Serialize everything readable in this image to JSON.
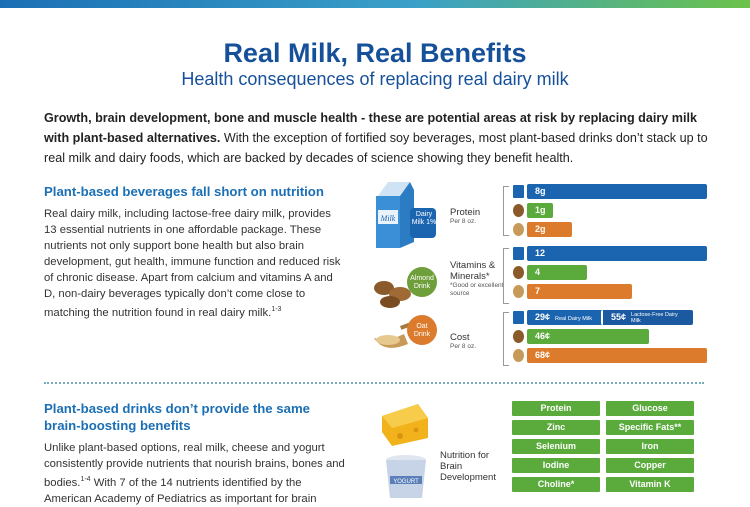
{
  "page": {
    "title": "Real Milk, Real Benefits",
    "subtitle": "Health consequences of replacing real dairy milk",
    "intro_bold": "Growth, brain development, bone and muscle health - these are potential areas at risk by replacing dairy milk with plant-based alternatives.",
    "intro_rest": " With the exception of fortified soy beverages, most plant-based drinks don’t stack up to real milk and dairy foods, which are backed by decades of science showing they benefit health."
  },
  "section1": {
    "heading": "Plant-based beverages fall short on nutrition",
    "body": "Real dairy milk, including lactose-free dairy milk, provides 13 essential nutrients in one affordable package. These nutrients not only support bone health but also brain development, gut health, immune function and reduced risk of chronic disease. Apart from calcium and vitamins A and D, non-dairy beverages typically don’t come close to matching the nutrition found in real dairy milk.",
    "body_sup": "1-3"
  },
  "products": {
    "dairy": "Dairy Milk 1%",
    "almond": "Almond Drink",
    "oat": "Oat Drink",
    "carton_text": "Milk"
  },
  "metrics": {
    "protein": {
      "label": "Protein",
      "note": "Per 8 oz."
    },
    "vitamins": {
      "label": "Vitamins & Minerals*",
      "note": "*Good or excellent source"
    },
    "cost": {
      "label": "Cost",
      "note": "Per 8 oz."
    }
  },
  "chart_data": {
    "type": "bar",
    "categories": [
      "Protein",
      "Vitamins & Minerals",
      "Cost"
    ],
    "series": [
      {
        "name": "Dairy Milk 1%",
        "values": [
          8,
          12,
          29
        ],
        "display": [
          "8g",
          "12",
          "29¢"
        ]
      },
      {
        "name": "Almond Drink",
        "values": [
          1,
          4,
          46
        ],
        "display": [
          "1g",
          "4",
          "46¢"
        ]
      },
      {
        "name": "Oat Drink",
        "values": [
          2,
          7,
          68
        ],
        "display": [
          "2g",
          "7",
          "68¢"
        ]
      }
    ],
    "extra": {
      "lactose_free_cost": "55¢",
      "real_label": "Real Dairy Milk",
      "lf_label": "Lactose-Free Dairy Milk"
    }
  },
  "section2": {
    "heading": "Plant-based drinks don’t provide the same brain-boosting benefits",
    "body": "Unlike plant-based options, real milk, cheese and yogurt consistently provide nutrients that nourish brains, bones and bodies.",
    "body_sup": "1-4",
    "body_cont": " With 7 of the 14 nutrients identified by the American Academy of Pediatrics as important for brain"
  },
  "brain": {
    "label": "Nutrition for Brain Development",
    "yogurt": "YOGURT",
    "left": [
      "Protein",
      "Zinc",
      "Selenium",
      "Iodine",
      "Choline*"
    ],
    "right": [
      "Glucose",
      "Specific Fats**",
      "Iron",
      "Copper",
      "Vitamin K"
    ]
  }
}
